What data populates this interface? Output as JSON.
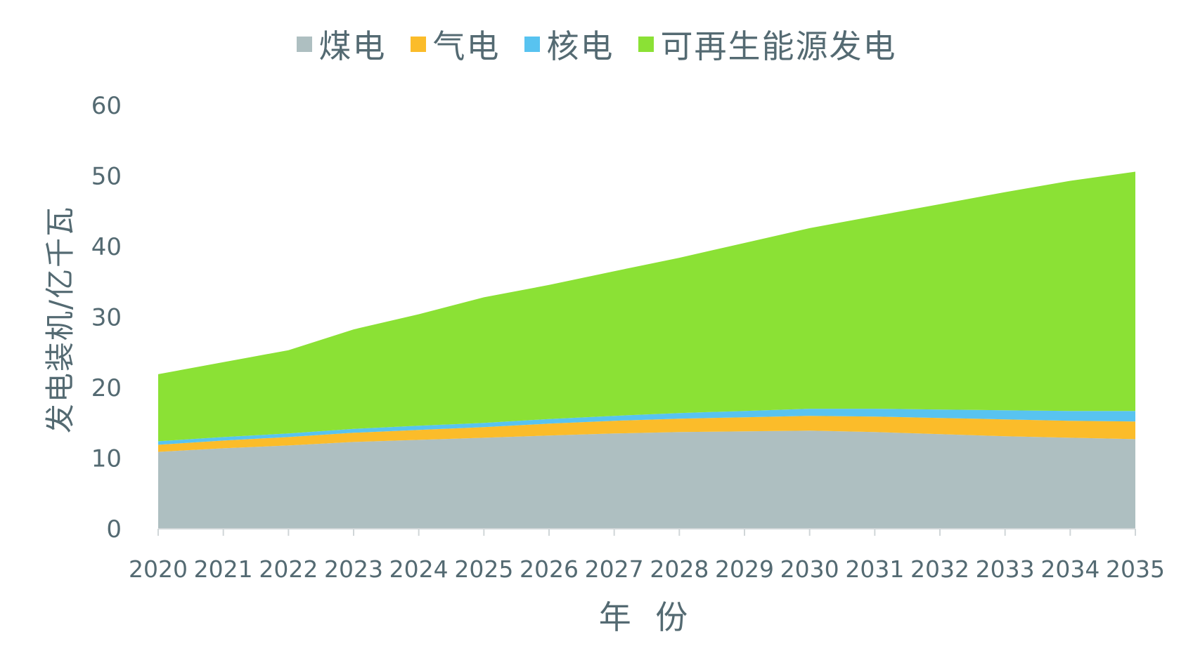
{
  "chart_data": {
    "type": "area",
    "stacked": true,
    "title": "",
    "xlabel": "年 份",
    "ylabel": "发电装机/亿千瓦",
    "ylim": [
      0,
      60
    ],
    "yticks": [
      "0",
      "10",
      "20",
      "30",
      "40",
      "50",
      "60"
    ],
    "categories": [
      "2020",
      "2021",
      "2022",
      "2023",
      "2024",
      "2025",
      "2026",
      "2027",
      "2028",
      "2029",
      "2030",
      "2031",
      "2032",
      "2033",
      "2034",
      "2035"
    ],
    "legend_position": "top",
    "grid": false,
    "series": [
      {
        "name": "煤电",
        "color": "#aebfc1",
        "values": [
          10.9,
          11.4,
          11.8,
          12.3,
          12.6,
          12.9,
          13.2,
          13.5,
          13.7,
          13.8,
          13.9,
          13.7,
          13.4,
          13.1,
          12.9,
          12.7
        ]
      },
      {
        "name": "气电",
        "color": "#fbbc2a",
        "values": [
          1.0,
          1.1,
          1.2,
          1.3,
          1.4,
          1.5,
          1.7,
          1.8,
          1.9,
          2.0,
          2.1,
          2.2,
          2.3,
          2.4,
          2.4,
          2.5
        ]
      },
      {
        "name": "核电",
        "color": "#58c3f0",
        "values": [
          0.5,
          0.5,
          0.5,
          0.55,
          0.6,
          0.6,
          0.65,
          0.7,
          0.8,
          0.9,
          1.0,
          1.1,
          1.2,
          1.3,
          1.4,
          1.5
        ]
      },
      {
        "name": "可再生能源发电",
        "color": "#8be135",
        "values": [
          9.5,
          10.6,
          11.8,
          14.1,
          15.8,
          17.8,
          19.0,
          20.5,
          22.0,
          23.8,
          25.6,
          27.3,
          29.1,
          30.9,
          32.6,
          33.9
        ]
      }
    ]
  }
}
